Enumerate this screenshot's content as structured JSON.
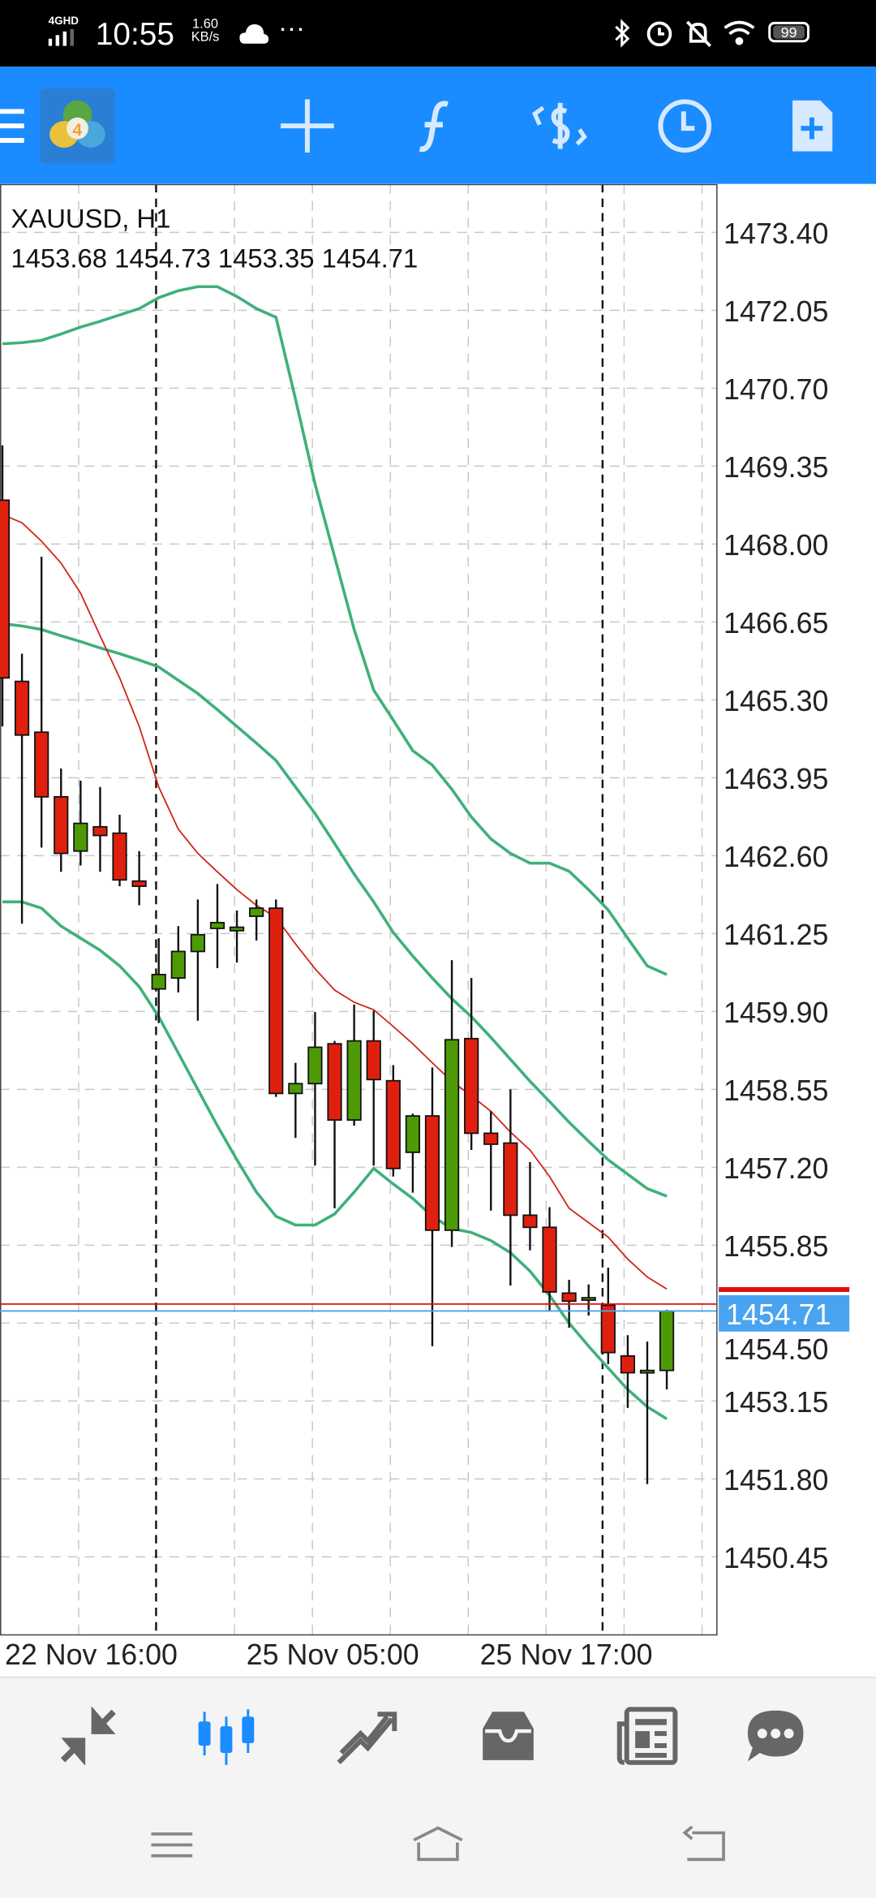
{
  "status_bar": {
    "network": "4GHD",
    "time": "10:55",
    "speed_value": "1.60",
    "speed_unit": "KB/s",
    "battery": "99"
  },
  "toolbar": {
    "icons": [
      "menu-icon",
      "mt4-logo",
      "crosshair-icon",
      "indicators-icon",
      "trade-icon",
      "timeframe-icon",
      "new-object-icon"
    ],
    "color": "#1a8cff"
  },
  "chart": {
    "symbol_line": "XAUUSD, H1",
    "ohlc_line": "1453.68 1454.73 1453.35 1454.71",
    "bid_price": "1454.71",
    "price_labels": [
      "1473.40",
      "1472.05",
      "1470.70",
      "1469.35",
      "1468.00",
      "1466.65",
      "1465.30",
      "1463.95",
      "1462.60",
      "1461.25",
      "1459.90",
      "1458.55",
      "1457.20",
      "1455.85",
      "1454.50",
      "1453.15",
      "1451.80",
      "1450.45"
    ],
    "time_labels": [
      "22 Nov 16:00",
      "25 Nov 05:00",
      "25 Nov 17:00"
    ],
    "colors": {
      "bull": "#4e9a06",
      "bear": "#e0200f",
      "bands": "#3fb07a",
      "ma": "#d0241a",
      "bid_line": "#4aa3f0",
      "ask_line": "#e01010"
    }
  },
  "chart_data": {
    "type": "candlestick",
    "symbol": "XAUUSD",
    "timeframe": "H1",
    "ylim": [
      1449.8,
      1474.0
    ],
    "grid": true,
    "candles": [
      {
        "o": 1468.76,
        "h": 1469.71,
        "l": 1464.84,
        "c": 1465.68
      },
      {
        "o": 1465.62,
        "h": 1466.1,
        "l": 1461.42,
        "c": 1464.69
      },
      {
        "o": 1464.74,
        "h": 1467.78,
        "l": 1462.74,
        "c": 1463.62
      },
      {
        "o": 1463.62,
        "h": 1464.11,
        "l": 1462.32,
        "c": 1462.64
      },
      {
        "o": 1462.68,
        "h": 1463.9,
        "l": 1462.43,
        "c": 1463.16
      },
      {
        "o": 1463.1,
        "h": 1463.79,
        "l": 1462.32,
        "c": 1462.95
      },
      {
        "o": 1462.99,
        "h": 1463.31,
        "l": 1462.07,
        "c": 1462.18
      },
      {
        "o": 1462.16,
        "h": 1462.68,
        "l": 1461.74,
        "c": 1462.07
      },
      {
        "o": 1460.29,
        "h": 1461.17,
        "l": 1459.7,
        "c": 1460.54
      },
      {
        "o": 1460.48,
        "h": 1461.38,
        "l": 1460.23,
        "c": 1460.94
      },
      {
        "o": 1460.94,
        "h": 1461.84,
        "l": 1459.74,
        "c": 1461.23
      },
      {
        "o": 1461.34,
        "h": 1462.11,
        "l": 1460.65,
        "c": 1461.44
      },
      {
        "o": 1461.3,
        "h": 1461.65,
        "l": 1460.75,
        "c": 1461.36
      },
      {
        "o": 1461.55,
        "h": 1461.84,
        "l": 1461.13,
        "c": 1461.69
      },
      {
        "o": 1461.69,
        "h": 1461.84,
        "l": 1458.42,
        "c": 1458.48
      },
      {
        "o": 1458.48,
        "h": 1459.01,
        "l": 1457.71,
        "c": 1458.65
      },
      {
        "o": 1458.65,
        "h": 1459.89,
        "l": 1457.23,
        "c": 1459.28
      },
      {
        "o": 1459.34,
        "h": 1459.39,
        "l": 1456.49,
        "c": 1458.02
      },
      {
        "o": 1458.02,
        "h": 1460.02,
        "l": 1457.92,
        "c": 1459.39
      },
      {
        "o": 1459.39,
        "h": 1459.91,
        "l": 1457.23,
        "c": 1458.72
      },
      {
        "o": 1458.7,
        "h": 1458.97,
        "l": 1457.04,
        "c": 1457.18
      },
      {
        "o": 1457.46,
        "h": 1458.13,
        "l": 1456.76,
        "c": 1458.09
      },
      {
        "o": 1458.09,
        "h": 1458.93,
        "l": 1454.1,
        "c": 1456.11
      },
      {
        "o": 1456.11,
        "h": 1460.79,
        "l": 1455.82,
        "c": 1459.41
      },
      {
        "o": 1459.43,
        "h": 1460.48,
        "l": 1457.5,
        "c": 1457.79
      },
      {
        "o": 1457.79,
        "h": 1458.17,
        "l": 1456.45,
        "c": 1457.6
      },
      {
        "o": 1457.62,
        "h": 1458.55,
        "l": 1455.15,
        "c": 1456.37
      },
      {
        "o": 1456.37,
        "h": 1457.29,
        "l": 1455.76,
        "c": 1456.16
      },
      {
        "o": 1456.16,
        "h": 1456.51,
        "l": 1454.71,
        "c": 1455.04
      },
      {
        "o": 1455.02,
        "h": 1455.25,
        "l": 1454.42,
        "c": 1454.88
      },
      {
        "o": 1454.94,
        "h": 1455.17,
        "l": 1454.63,
        "c": 1454.94
      },
      {
        "o": 1454.81,
        "h": 1455.46,
        "l": 1453.79,
        "c": 1453.99
      },
      {
        "o": 1453.93,
        "h": 1454.29,
        "l": 1453.03,
        "c": 1453.64
      },
      {
        "o": 1453.64,
        "h": 1454.18,
        "l": 1451.71,
        "c": 1453.68
      },
      {
        "o": 1453.68,
        "h": 1454.73,
        "l": 1453.35,
        "c": 1454.71
      }
    ],
    "upper_band": [
      1471.47,
      1471.49,
      1471.53,
      1471.64,
      1471.76,
      1471.86,
      1471.97,
      1472.08,
      1472.27,
      1472.39,
      1472.46,
      1472.46,
      1472.29,
      1472.08,
      1471.93,
      1470.51,
      1469.04,
      1467.78,
      1466.52,
      1465.47,
      1464.95,
      1464.42,
      1464.17,
      1463.75,
      1463.27,
      1462.89,
      1462.64,
      1462.47,
      1462.47,
      1462.33,
      1462.01,
      1461.66,
      1461.17,
      1460.69,
      1460.54
    ],
    "middle_band": [
      1466.62,
      1466.58,
      1466.52,
      1466.41,
      1466.31,
      1466.2,
      1466.1,
      1465.99,
      1465.87,
      1465.64,
      1465.41,
      1465.13,
      1464.84,
      1464.55,
      1464.25,
      1463.79,
      1463.33,
      1462.81,
      1462.28,
      1461.8,
      1461.27,
      1460.86,
      1460.48,
      1460.12,
      1459.81,
      1459.45,
      1459.07,
      1458.69,
      1458.34,
      1457.98,
      1457.65,
      1457.33,
      1457.08,
      1456.83,
      1456.7
    ],
    "lower_band": [
      1461.8,
      1461.8,
      1461.69,
      1461.38,
      1461.17,
      1460.96,
      1460.69,
      1460.33,
      1459.81,
      1459.18,
      1458.55,
      1457.92,
      1457.33,
      1456.77,
      1456.35,
      1456.2,
      1456.2,
      1456.39,
      1456.77,
      1457.18,
      1456.91,
      1456.66,
      1456.35,
      1456.14,
      1456.07,
      1455.93,
      1455.72,
      1455.4,
      1454.98,
      1454.5,
      1454.1,
      1453.72,
      1453.35,
      1453.05,
      1452.84
    ],
    "moving_average": [
      1468.51,
      1468.37,
      1468.05,
      1467.67,
      1467.15,
      1466.41,
      1465.68,
      1464.84,
      1463.79,
      1463.06,
      1462.64,
      1462.32,
      1462.01,
      1461.74,
      1461.53,
      1461.07,
      1460.64,
      1460.27,
      1460.06,
      1459.93,
      1459.64,
      1459.34,
      1459.01,
      1458.69,
      1458.44,
      1458.17,
      1457.81,
      1457.5,
      1457.04,
      1456.49,
      1456.24,
      1455.99,
      1455.61,
      1455.3,
      1455.09
    ],
    "bid": 1454.71,
    "ask": 1454.83
  },
  "bottom_tabs": [
    {
      "icon": "quotes-icon",
      "active": false
    },
    {
      "icon": "chart-icon",
      "active": true
    },
    {
      "icon": "trade-icon",
      "active": false
    },
    {
      "icon": "history-icon",
      "active": false
    },
    {
      "icon": "news-icon",
      "active": false
    },
    {
      "icon": "chat-icon",
      "active": false
    }
  ],
  "accent": "#1a8cff"
}
